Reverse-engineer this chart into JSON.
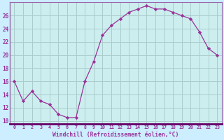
{
  "x": [
    0,
    1,
    2,
    3,
    4,
    5,
    6,
    7,
    8,
    9,
    10,
    11,
    12,
    13,
    14,
    15,
    16,
    17,
    18,
    19,
    20,
    21,
    22,
    23
  ],
  "y": [
    16,
    13,
    14.5,
    13,
    12.5,
    11,
    10.5,
    10.5,
    16,
    19,
    23,
    24.5,
    25.5,
    26.5,
    27,
    27.5,
    27,
    27,
    26.5,
    26,
    25.5,
    23.5,
    21,
    20
  ],
  "line_color": "#993399",
  "marker": "D",
  "marker_size": 2.2,
  "background_color": "#cceeff",
  "plot_bg_color": "#cceeee",
  "grid_color": "#aacccc",
  "xlabel": "Windchill (Refroidissement éolien,°C)",
  "xlabel_color": "#993399",
  "tick_color": "#993399",
  "spine_color": "#9966aa",
  "bottom_spine_color": "#660066",
  "ylim": [
    9.5,
    28
  ],
  "xlim": [
    -0.5,
    23.5
  ],
  "yticks": [
    10,
    12,
    14,
    16,
    18,
    20,
    22,
    24,
    26
  ],
  "xticks": [
    0,
    1,
    2,
    3,
    4,
    5,
    6,
    7,
    8,
    9,
    10,
    11,
    12,
    13,
    14,
    15,
    16,
    17,
    18,
    19,
    20,
    21,
    22,
    23
  ]
}
